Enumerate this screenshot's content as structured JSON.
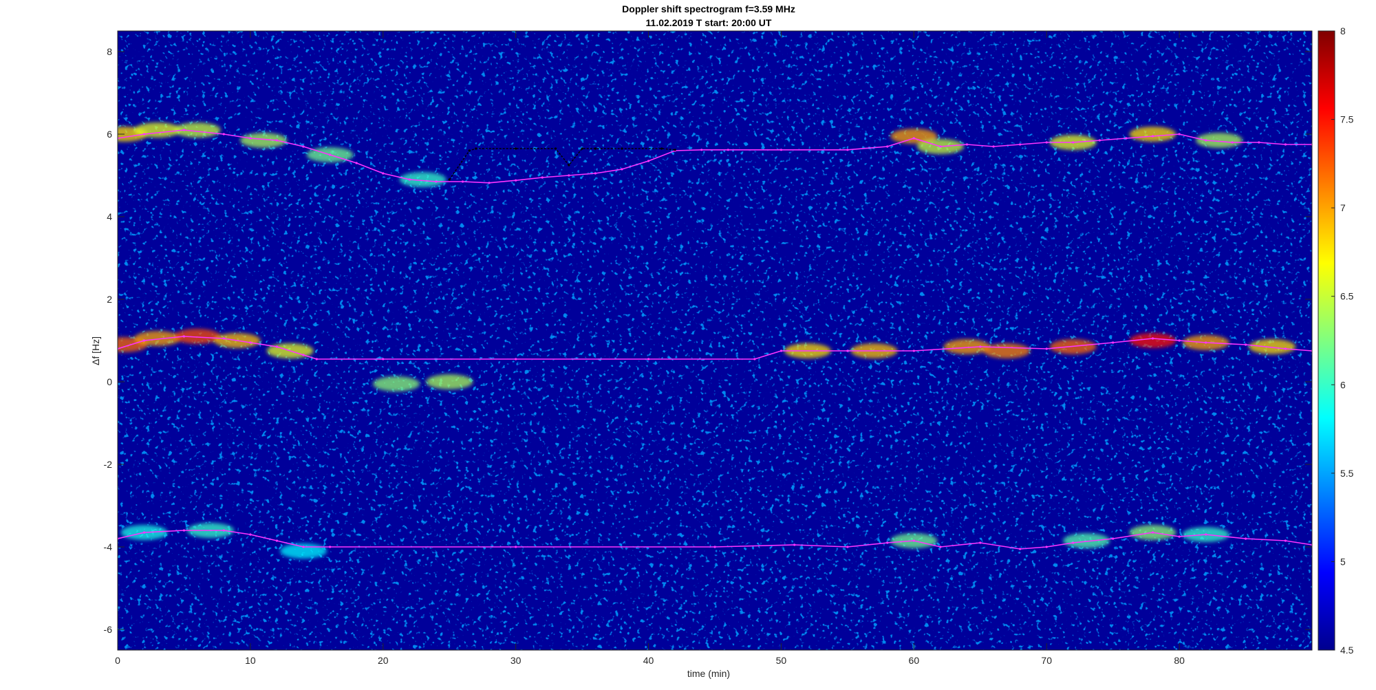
{
  "chart_data": {
    "type": "heatmap",
    "title": "Doppler shift spectrogram f=3.59 MHz",
    "subtitle": "11.02.2019   T start: 20:00 UT",
    "xlabel": "time (min)",
    "ylabel": "Δf [Hz]",
    "xlim": [
      0,
      90
    ],
    "ylim": [
      -6.5,
      8.5
    ],
    "x_ticks": [
      0,
      10,
      20,
      30,
      40,
      50,
      60,
      70,
      80
    ],
    "y_ticks": [
      -6,
      -4,
      -2,
      0,
      2,
      4,
      6,
      8
    ],
    "colorbar": {
      "colormap": "jet",
      "clim": [
        4.5,
        8
      ],
      "ticks": [
        4.5,
        5,
        5.5,
        6,
        6.5,
        7,
        7.5,
        8
      ]
    },
    "colors": {
      "background": "#00009a",
      "trace": "#ff33ff"
    },
    "series": [
      {
        "x": [
          0,
          2,
          5,
          8,
          10,
          12,
          14,
          16,
          18,
          20,
          22,
          24,
          26,
          28,
          30,
          32,
          34,
          36,
          38,
          40,
          42,
          44,
          46,
          50,
          55,
          58,
          60,
          62,
          64,
          66,
          68,
          70,
          72,
          74,
          76,
          78,
          80,
          82,
          84,
          86,
          88,
          90
        ],
        "y": [
          5.9,
          6.0,
          6.1,
          6.0,
          5.9,
          5.85,
          5.7,
          5.5,
          5.3,
          5.05,
          4.9,
          4.85,
          4.85,
          4.82,
          4.88,
          4.95,
          5.0,
          5.05,
          5.15,
          5.35,
          5.6,
          5.62,
          5.62,
          5.62,
          5.62,
          5.7,
          5.9,
          5.7,
          5.75,
          5.7,
          5.75,
          5.8,
          5.8,
          5.85,
          5.9,
          5.95,
          6.0,
          5.85,
          5.8,
          5.8,
          5.75,
          5.75
        ]
      },
      {
        "x": [
          0,
          2,
          5,
          8,
          10,
          12,
          14,
          15,
          20,
          30,
          40,
          48,
          50,
          55,
          60,
          65,
          70,
          75,
          78,
          80,
          82,
          85,
          88,
          90
        ],
        "y": [
          0.8,
          1.0,
          1.1,
          1.05,
          0.95,
          0.85,
          0.65,
          0.55,
          0.55,
          0.55,
          0.55,
          0.55,
          0.75,
          0.75,
          0.75,
          0.85,
          0.8,
          0.95,
          1.05,
          1.0,
          0.95,
          0.9,
          0.8,
          0.75
        ]
      },
      {
        "x": [
          0,
          2,
          5,
          8,
          10,
          12,
          14,
          16,
          30,
          45,
          51,
          55,
          58,
          60,
          62,
          65,
          68,
          70,
          72,
          75,
          78,
          80,
          82,
          85,
          88,
          90
        ],
        "y": [
          -3.8,
          -3.65,
          -3.6,
          -3.6,
          -3.7,
          -3.85,
          -4.0,
          -4.0,
          -4.0,
          -4.0,
          -3.95,
          -4.0,
          -3.9,
          -3.85,
          -4.0,
          -3.9,
          -4.05,
          -4.0,
          -3.9,
          -3.8,
          -3.65,
          -3.75,
          -3.7,
          -3.8,
          -3.85,
          -3.95
        ]
      },
      {
        "x": [
          25,
          26.5,
          27,
          30,
          33,
          34,
          35,
          36,
          38,
          41,
          42
        ],
        "y": [
          4.9,
          5.6,
          5.65,
          5.65,
          5.65,
          5.25,
          5.65,
          5.65,
          5.65,
          5.65,
          5.62
        ]
      }
    ],
    "blobs": [
      {
        "x": 0.5,
        "y": 6.0,
        "value": 6.8
      },
      {
        "x": 3,
        "y": 6.1,
        "value": 6.6
      },
      {
        "x": 6,
        "y": 6.1,
        "value": 6.5
      },
      {
        "x": 11,
        "y": 5.85,
        "value": 6.4
      },
      {
        "x": 16,
        "y": 5.5,
        "value": 6.2
      },
      {
        "x": 23,
        "y": 4.9,
        "value": 6.0
      },
      {
        "x": 60,
        "y": 5.95,
        "value": 7.0
      },
      {
        "x": 62,
        "y": 5.7,
        "value": 6.5
      },
      {
        "x": 72,
        "y": 5.8,
        "value": 6.6
      },
      {
        "x": 78,
        "y": 6.0,
        "value": 6.8
      },
      {
        "x": 83,
        "y": 5.85,
        "value": 6.4
      },
      {
        "x": 0.5,
        "y": 0.9,
        "value": 7.2
      },
      {
        "x": 3,
        "y": 1.05,
        "value": 7.0
      },
      {
        "x": 6,
        "y": 1.1,
        "value": 7.3
      },
      {
        "x": 9,
        "y": 1.0,
        "value": 6.9
      },
      {
        "x": 13,
        "y": 0.75,
        "value": 6.6
      },
      {
        "x": 21,
        "y": -0.05,
        "value": 6.3
      },
      {
        "x": 25,
        "y": 0.0,
        "value": 6.4
      },
      {
        "x": 52,
        "y": 0.75,
        "value": 6.8
      },
      {
        "x": 57,
        "y": 0.75,
        "value": 6.9
      },
      {
        "x": 64,
        "y": 0.85,
        "value": 7.0
      },
      {
        "x": 67,
        "y": 0.75,
        "value": 7.1
      },
      {
        "x": 72,
        "y": 0.85,
        "value": 7.2
      },
      {
        "x": 78,
        "y": 1.0,
        "value": 7.5
      },
      {
        "x": 82,
        "y": 0.95,
        "value": 7.0
      },
      {
        "x": 87,
        "y": 0.85,
        "value": 6.8
      },
      {
        "x": 2,
        "y": -3.65,
        "value": 5.9
      },
      {
        "x": 7,
        "y": -3.6,
        "value": 6.0
      },
      {
        "x": 14,
        "y": -4.1,
        "value": 5.8
      },
      {
        "x": 60,
        "y": -3.85,
        "value": 6.2
      },
      {
        "x": 73,
        "y": -3.85,
        "value": 6.1
      },
      {
        "x": 78,
        "y": -3.65,
        "value": 6.3
      },
      {
        "x": 82,
        "y": -3.7,
        "value": 6.0
      }
    ]
  }
}
